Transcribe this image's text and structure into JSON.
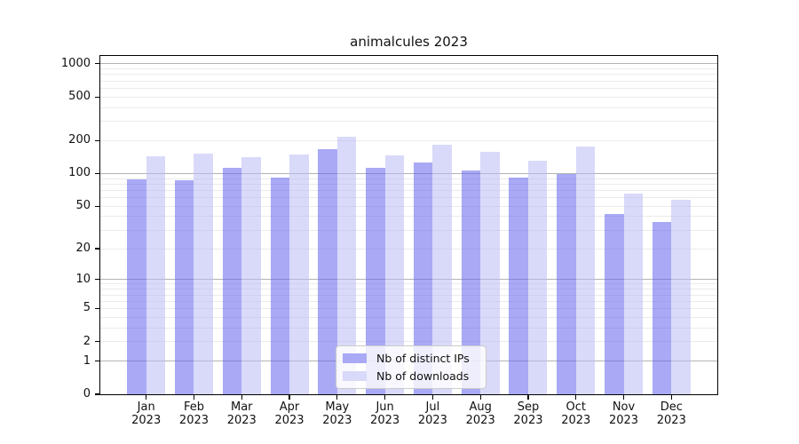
{
  "chart_data": {
    "type": "bar",
    "title": "animalcules 2023",
    "categories": [
      "Jan",
      "Feb",
      "Mar",
      "Apr",
      "May",
      "Jun",
      "Jul",
      "Aug",
      "Sep",
      "Oct",
      "Nov",
      "Dec"
    ],
    "year_label": "2023",
    "series": [
      {
        "name": "Nb of distinct IPs",
        "values": [
          88,
          86,
          112,
          91,
          166,
          112,
          127,
          107,
          91,
          99,
          42,
          36
        ],
        "color": "#a9a9f5"
      },
      {
        "name": "Nb of downloads",
        "values": [
          145,
          152,
          140,
          150,
          219,
          146,
          182,
          158,
          132,
          178,
          66,
          57
        ],
        "color": "#d9d9f9"
      }
    ],
    "yscale": "log1p",
    "y_ticks": [
      0,
      1,
      2,
      5,
      10,
      20,
      50,
      100,
      200,
      500,
      1000
    ],
    "ylim": [
      0,
      1180
    ],
    "grid": {
      "major_values": [
        1,
        10,
        100,
        1000
      ],
      "minor_values": [
        2,
        3,
        4,
        5,
        6,
        7,
        8,
        9,
        20,
        30,
        40,
        50,
        60,
        70,
        80,
        90,
        200,
        300,
        400,
        500,
        600,
        700,
        800,
        900
      ],
      "major_color": "#b3b3b3",
      "minor_color": "#ebebeb"
    },
    "legend_position": "lower center",
    "axis_color": "#000000",
    "title_color": "#111111"
  }
}
